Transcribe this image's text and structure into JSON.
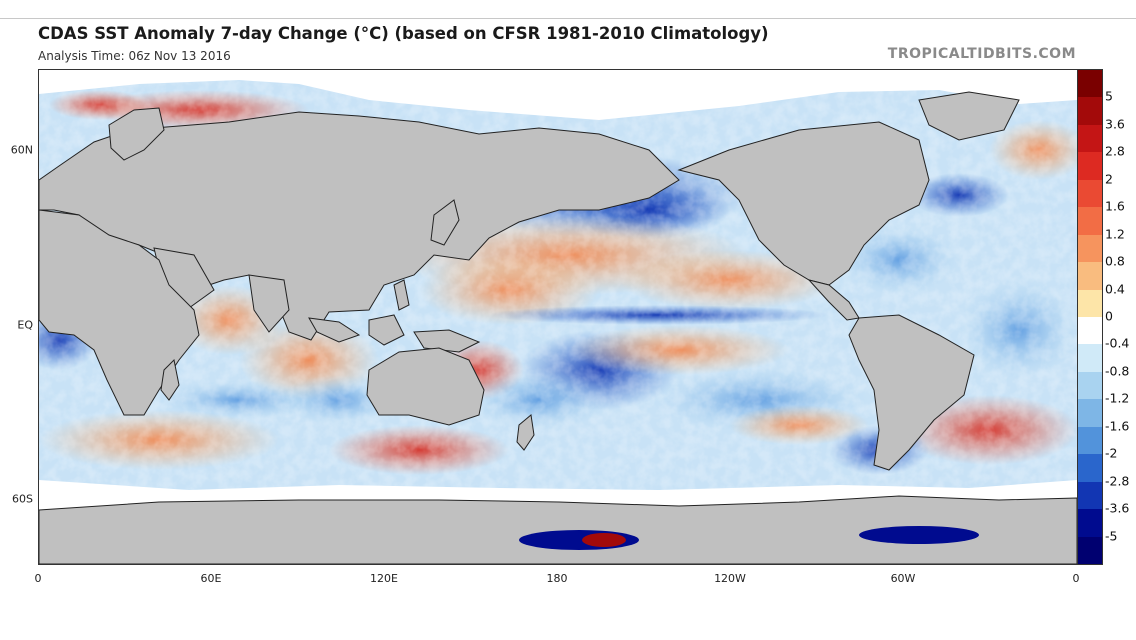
{
  "title": "CDAS SST Anomaly 7-day Change (°C) (based on CFSR 1981-2010 Climatology)",
  "subtitle": "Analysis Time: 06z Nov 13 2016",
  "credit": "TROPICALTIDBITS.COM",
  "colors": {
    "land": "#c0c0c0",
    "ice": "#ffffff",
    "border": "#222222"
  },
  "map": {
    "lat_labels": [
      {
        "text": "60N",
        "lat": 60
      },
      {
        "text": "EQ",
        "lat": 0
      },
      {
        "text": "60S",
        "lat": -60
      }
    ],
    "lon_labels": [
      {
        "text": "0",
        "lon": 0
      },
      {
        "text": "60E",
        "lon": 60
      },
      {
        "text": "120E",
        "lon": 120
      },
      {
        "text": "180",
        "lon": 180
      },
      {
        "text": "120W",
        "lon": 240
      },
      {
        "text": "60W",
        "lon": 300
      },
      {
        "text": "0",
        "lon": 360
      }
    ]
  },
  "colorbar": {
    "labels": [
      "5",
      "3.6",
      "2.8",
      "2",
      "1.6",
      "1.2",
      "0.8",
      "0.4",
      "0",
      "-0.4",
      "-0.8",
      "-1.2",
      "-1.6",
      "-2",
      "-2.8",
      "-3.6",
      "-5"
    ],
    "colors": [
      "#7a0000",
      "#a30a0a",
      "#c41515",
      "#dd2a22",
      "#ea4a33",
      "#f26d45",
      "#f6945e",
      "#f9bc7f",
      "#fde5a8",
      "#ffffff",
      "#d0eaf8",
      "#a9d3f0",
      "#7eb6e6",
      "#5293db",
      "#2a66cc",
      "#1236b3",
      "#000b8f",
      "#000070"
    ]
  }
}
